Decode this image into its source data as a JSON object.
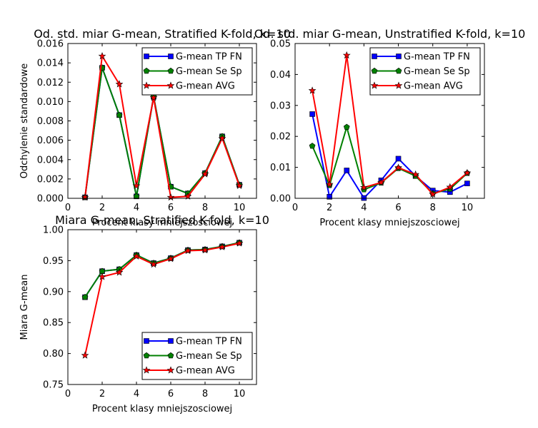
{
  "chart_data": [
    {
      "type": "line",
      "title": "Od. std. miar G-mean, Stratified K-fold, k=10",
      "xlabel": "Procent klasy mniejszosciowej",
      "ylabel": "Odchylenie standardowe",
      "xlim": [
        0,
        11
      ],
      "ylim": [
        0,
        0.016
      ],
      "xticks": [
        0,
        2,
        4,
        6,
        8,
        10
      ],
      "xtick_labels": [
        "0",
        "2",
        "4",
        "6",
        "8",
        "10"
      ],
      "yticks": [
        0,
        0.002,
        0.004,
        0.006,
        0.008,
        0.01,
        0.012,
        0.014,
        0.016
      ],
      "ytick_labels": [
        "0.000",
        "0.002",
        "0.004",
        "0.006",
        "0.008",
        "0.010",
        "0.012",
        "0.014",
        "0.016"
      ],
      "legend_position": "top-right",
      "x": [
        1,
        2,
        3,
        4,
        5,
        6,
        7,
        8,
        9,
        10
      ],
      "series": [
        {
          "name": "G-mean TP FN",
          "color": "#0000ff",
          "marker": "square",
          "values": [
            0.0001,
            0.0135,
            0.0086,
            0.0002,
            0.0105,
            0.0012,
            0.0005,
            0.0026,
            0.0064,
            0.0014
          ]
        },
        {
          "name": "G-mean Se Sp",
          "color": "#008000",
          "marker": "pentagon",
          "values": [
            0.0001,
            0.0135,
            0.0086,
            0.0002,
            0.0105,
            0.0012,
            0.0005,
            0.0026,
            0.0064,
            0.0014
          ]
        },
        {
          "name": "G-mean AVG",
          "color": "#ff0000",
          "marker": "star",
          "values": [
            0.0001,
            0.0147,
            0.0118,
            0.0013,
            0.0104,
            0.0001,
            0.0002,
            0.0025,
            0.0062,
            0.0013
          ]
        }
      ]
    },
    {
      "type": "line",
      "title": "Od. std. miar G-mean, Unstratified K-fold, k=10",
      "xlabel": "Procent klasy mniejszosciowej",
      "ylabel": "",
      "xlim": [
        0,
        11
      ],
      "ylim": [
        0,
        0.05
      ],
      "xticks": [
        0,
        2,
        4,
        6,
        8,
        10
      ],
      "xtick_labels": [
        "0",
        "2",
        "4",
        "6",
        "8",
        "10"
      ],
      "yticks": [
        0,
        0.01,
        0.02,
        0.03,
        0.04,
        0.05
      ],
      "ytick_labels": [
        "0.00",
        "0.01",
        "0.02",
        "0.03",
        "0.04",
        "0.05"
      ],
      "legend_position": "top-right",
      "x": [
        1,
        2,
        3,
        4,
        5,
        6,
        7,
        8,
        9,
        10
      ],
      "series": [
        {
          "name": "G-mean TP FN",
          "color": "#0000ff",
          "marker": "square",
          "values": [
            0.0272,
            0.0005,
            0.009,
            0.0001,
            0.0058,
            0.0128,
            0.0072,
            0.0025,
            0.002,
            0.0048
          ]
        },
        {
          "name": "G-mean Se Sp",
          "color": "#008000",
          "marker": "pentagon",
          "values": [
            0.0169,
            0.0042,
            0.023,
            0.0028,
            0.005,
            0.0097,
            0.0072,
            0.0016,
            0.003,
            0.0081
          ]
        },
        {
          "name": "G-mean AVG",
          "color": "#ff0000",
          "marker": "star",
          "values": [
            0.0348,
            0.0045,
            0.0462,
            0.0035,
            0.0051,
            0.0099,
            0.0077,
            0.0013,
            0.0036,
            0.0082
          ]
        }
      ]
    },
    {
      "type": "line",
      "title": "Miara G-mean, Stratified K-fold, k=10",
      "xlabel": "Procent klasy mniejszosciowej",
      "ylabel": "Miara G-mean",
      "xlim": [
        0,
        11
      ],
      "ylim": [
        0.75,
        1.0
      ],
      "xticks": [
        0,
        2,
        4,
        6,
        8,
        10
      ],
      "xtick_labels": [
        "0",
        "2",
        "4",
        "6",
        "8",
        "10"
      ],
      "yticks": [
        0.75,
        0.8,
        0.85,
        0.9,
        0.95,
        1.0
      ],
      "ytick_labels": [
        "0.75",
        "0.80",
        "0.85",
        "0.90",
        "0.95",
        "1.00"
      ],
      "legend_position": "bottom-right",
      "x": [
        1,
        2,
        3,
        4,
        5,
        6,
        7,
        8,
        9,
        10
      ],
      "series": [
        {
          "name": "G-mean TP FN",
          "color": "#0000ff",
          "marker": "square",
          "values": [
            0.891,
            0.933,
            0.936,
            0.959,
            0.946,
            0.954,
            0.967,
            0.968,
            0.973,
            0.979
          ]
        },
        {
          "name": "G-mean Se Sp",
          "color": "#008000",
          "marker": "pentagon",
          "values": [
            0.891,
            0.933,
            0.936,
            0.959,
            0.946,
            0.954,
            0.967,
            0.968,
            0.973,
            0.979
          ]
        },
        {
          "name": "G-mean AVG",
          "color": "#ff0000",
          "marker": "star",
          "values": [
            0.797,
            0.924,
            0.931,
            0.957,
            0.944,
            0.953,
            0.966,
            0.967,
            0.972,
            0.978
          ]
        }
      ]
    }
  ]
}
